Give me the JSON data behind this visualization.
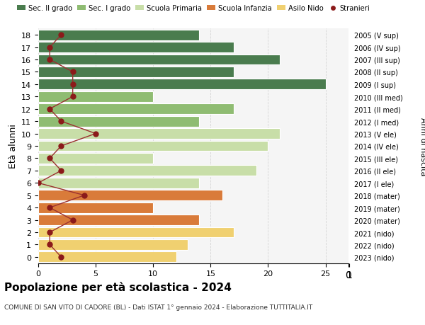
{
  "ages": [
    18,
    17,
    16,
    15,
    14,
    13,
    12,
    11,
    10,
    9,
    8,
    7,
    6,
    5,
    4,
    3,
    2,
    1,
    0
  ],
  "years": [
    "2005 (V sup)",
    "2006 (IV sup)",
    "2007 (III sup)",
    "2008 (II sup)",
    "2009 (I sup)",
    "2010 (III med)",
    "2011 (II med)",
    "2012 (I med)",
    "2013 (V ele)",
    "2014 (IV ele)",
    "2015 (III ele)",
    "2016 (II ele)",
    "2017 (I ele)",
    "2018 (mater)",
    "2019 (mater)",
    "2020 (mater)",
    "2021 (nido)",
    "2022 (nido)",
    "2023 (nido)"
  ],
  "bar_values": [
    14,
    17,
    21,
    17,
    25,
    10,
    17,
    14,
    21,
    20,
    10,
    19,
    14,
    16,
    10,
    14,
    17,
    13,
    12
  ],
  "bar_colors": [
    "#4a7c4e",
    "#4a7c4e",
    "#4a7c4e",
    "#4a7c4e",
    "#4a7c4e",
    "#8fbc72",
    "#8fbc72",
    "#8fbc72",
    "#c8dea8",
    "#c8dea8",
    "#c8dea8",
    "#c8dea8",
    "#c8dea8",
    "#d97b3a",
    "#d97b3a",
    "#d97b3a",
    "#f0d070",
    "#f0d070",
    "#f0d070"
  ],
  "stranieri_values": [
    2,
    1,
    1,
    3,
    3,
    3,
    1,
    2,
    5,
    2,
    1,
    2,
    0,
    4,
    1,
    3,
    1,
    1,
    2
  ],
  "xlim": [
    0,
    27
  ],
  "xticks": [
    0,
    5,
    10,
    15,
    20,
    25
  ],
  "ylabel_left": "Età alunni",
  "ylabel_right": "Anni di nascita",
  "title": "Popolazione per età scolastica - 2024",
  "subtitle": "COMUNE DI SAN VITO DI CADORE (BL) - Dati ISTAT 1° gennaio 2024 - Elaborazione TUTTITALIA.IT",
  "legend_labels": [
    "Sec. II grado",
    "Sec. I grado",
    "Scuola Primaria",
    "Scuola Infanzia",
    "Asilo Nido",
    "Stranieri"
  ],
  "legend_colors": [
    "#4a7c4e",
    "#8fbc72",
    "#c8dea8",
    "#d97b3a",
    "#f0d070",
    "#8b1a1a"
  ],
  "bg_color": "#f5f5f5",
  "grid_color": "#cccccc",
  "stranieri_color": "#8b1a1a",
  "stranieri_line_color": "#9b3030"
}
